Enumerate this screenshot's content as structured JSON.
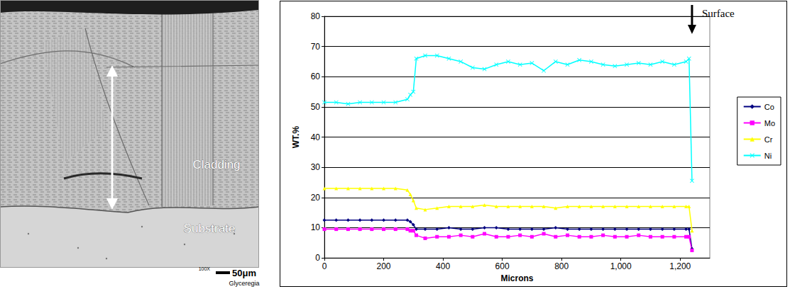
{
  "chart_data": {
    "type": "line",
    "x_label": "Microns",
    "y_label": "WT.%",
    "x": [
      0,
      40,
      80,
      120,
      160,
      200,
      240,
      280,
      290,
      300,
      310,
      340,
      380,
      420,
      460,
      500,
      540,
      580,
      620,
      660,
      700,
      740,
      780,
      820,
      860,
      900,
      940,
      980,
      1020,
      1060,
      1100,
      1140,
      1180,
      1220,
      1230,
      1240
    ],
    "series": [
      {
        "name": "Co",
        "color": "#000080",
        "marker": "diamond",
        "values": [
          12.5,
          12.5,
          12.5,
          12.5,
          12.5,
          12.5,
          12.5,
          12.5,
          12,
          11,
          9.5,
          9.5,
          9.5,
          10,
          9.5,
          9.5,
          10,
          10,
          9.5,
          9.5,
          9.5,
          9.5,
          10,
          9.5,
          9.5,
          9.5,
          9.5,
          9.5,
          9.5,
          9.5,
          9.5,
          9.5,
          9.5,
          9.5,
          9.5,
          3
        ]
      },
      {
        "name": "Mo",
        "color": "#ff00ff",
        "marker": "square",
        "values": [
          9.5,
          9.5,
          9.5,
          9.5,
          9.5,
          9.5,
          9.5,
          9.5,
          9,
          9,
          7.5,
          6.5,
          7,
          7,
          7.5,
          7,
          8,
          7,
          7,
          7.5,
          7,
          8,
          7,
          7.5,
          7,
          7,
          7.5,
          7,
          7,
          7.5,
          7,
          7,
          7,
          7,
          7,
          2.5
        ]
      },
      {
        "name": "Cr",
        "color": "#ffff00",
        "marker": "triangle",
        "values": [
          23,
          23,
          23,
          23,
          23,
          23,
          23,
          22.5,
          21,
          19,
          16.5,
          16,
          16.5,
          17,
          17,
          17,
          17.5,
          17,
          17,
          17,
          17,
          17,
          16.5,
          17,
          17,
          17,
          17,
          17,
          17,
          17,
          17,
          17,
          17,
          17,
          17,
          9
        ]
      },
      {
        "name": "Ni",
        "color": "#00ffff",
        "marker": "cross",
        "values": [
          51.5,
          51.5,
          51,
          51.5,
          51.5,
          51.5,
          51.5,
          52.5,
          54,
          55,
          66,
          67,
          67,
          66,
          65,
          63,
          62.5,
          64,
          65,
          64,
          64.5,
          62,
          65,
          64,
          65.5,
          65,
          64,
          63.5,
          64,
          64.5,
          64,
          65,
          64,
          65,
          66,
          25.5
        ]
      }
    ],
    "xlim": [
      0,
      1300
    ],
    "xticks": [
      0,
      200,
      400,
      600,
      800,
      1000,
      1200
    ],
    "ylim": [
      0,
      80
    ],
    "yticks": [
      0,
      10,
      20,
      30,
      40,
      50,
      60,
      70,
      80
    ],
    "grid": true,
    "legend": "right",
    "annotations": [
      {
        "text": "Surface",
        "x": 1240
      }
    ]
  },
  "image": {
    "labels": [
      "Cladding",
      "Substrate"
    ],
    "scale_bar": "50μm",
    "magnification": "100X",
    "etchant": "Glyceregia"
  }
}
